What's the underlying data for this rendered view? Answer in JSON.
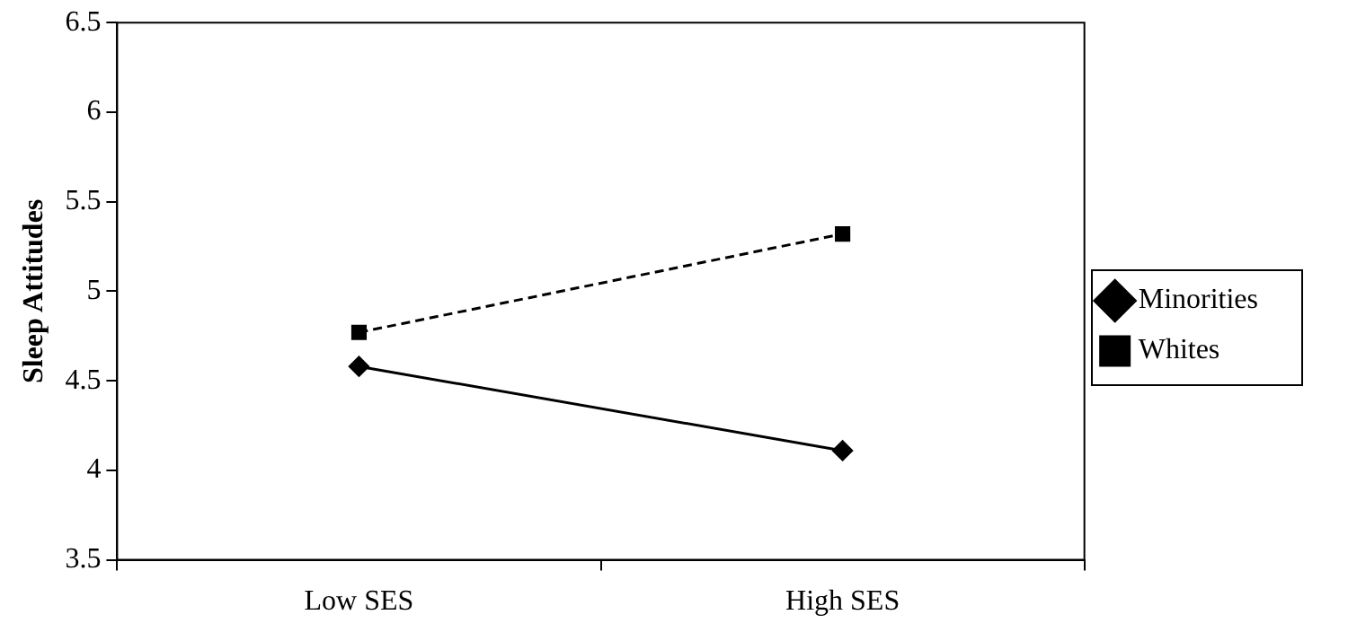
{
  "chart_data": {
    "type": "line",
    "ylabel": "Sleep Attitudes",
    "categories": [
      "Low SES",
      "High SES"
    ],
    "series": [
      {
        "name": "Minorities",
        "color": "#000000",
        "values": [
          4.58,
          4.11
        ],
        "marker": "diamond",
        "line_style": "solid"
      },
      {
        "name": "Whites",
        "color": "#000000",
        "values": [
          4.77,
          5.32
        ],
        "marker": "square",
        "line_style": "dashed"
      }
    ],
    "ylim": [
      3.5,
      6.5
    ],
    "yticks": [
      3.5,
      4,
      4.5,
      5,
      5.5,
      6,
      6.5
    ],
    "grid": false,
    "legend": "right"
  }
}
